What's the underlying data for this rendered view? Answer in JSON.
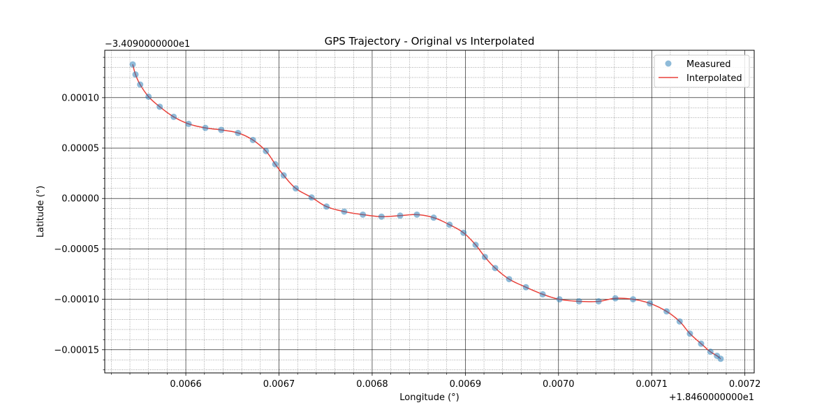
{
  "chart_data": {
    "type": "line",
    "title": "GPS Trajectory - Original vs Interpolated",
    "xlabel": "Longitude (°)",
    "ylabel": "Latitude (°)",
    "x_offset_label": "+1.8460000000e1",
    "y_offset_label": "−3.4090000000e1",
    "x_offset": 18.46,
    "y_offset": -34.09,
    "xlim": [
      0.006513,
      0.00721
    ],
    "ylim": [
      -0.000173,
      0.000147
    ],
    "xticks": [
      0.0066,
      0.0067,
      0.0068,
      0.0069,
      0.007,
      0.0071,
      0.0072
    ],
    "xtick_labels": [
      "0.0066",
      "0.0067",
      "0.0068",
      "0.0069",
      "0.0070",
      "0.0071",
      "0.0072"
    ],
    "yticks": [
      0.0001,
      5e-05,
      0.0,
      -5e-05,
      -0.0001,
      -0.00015
    ],
    "ytick_labels": [
      "0.00010",
      "0.00005",
      "0.00000",
      "−0.00005",
      "−0.00010",
      "−0.00015"
    ],
    "grid": true,
    "legend_position": "top-right",
    "series": [
      {
        "name": "Measured",
        "kind": "scatter",
        "color": "#1f77b4",
        "x": [
          0.006543,
          0.006546,
          0.006551,
          0.00656,
          0.006572,
          0.006587,
          0.006603,
          0.006621,
          0.006638,
          0.006656,
          0.006672,
          0.006686,
          0.006696,
          0.006705,
          0.006718,
          0.006735,
          0.006751,
          0.00677,
          0.00679,
          0.00681,
          0.00683,
          0.006848,
          0.006866,
          0.006883,
          0.006898,
          0.006911,
          0.006921,
          0.006932,
          0.006947,
          0.006965,
          0.006983,
          0.007001,
          0.007022,
          0.007043,
          0.007061,
          0.00708,
          0.007098,
          0.007116,
          0.00713,
          0.007141,
          0.007153,
          0.007163,
          0.00717,
          0.007174
        ],
        "y": [
          0.000133,
          0.000123,
          0.000113,
          0.000101,
          9.1e-05,
          8.1e-05,
          7.4e-05,
          7e-05,
          6.8e-05,
          6.5e-05,
          5.8e-05,
          4.7e-05,
          3.4e-05,
          2.3e-05,
          1e-05,
          1e-06,
          -8e-06,
          -1.3e-05,
          -1.6e-05,
          -1.8e-05,
          -1.7e-05,
          -1.6e-05,
          -1.9e-05,
          -2.6e-05,
          -3.4e-05,
          -4.6e-05,
          -5.8e-05,
          -6.9e-05,
          -8e-05,
          -8.8e-05,
          -9.5e-05,
          -0.0001,
          -0.000102,
          -0.000102,
          -9.9e-05,
          -0.0001,
          -0.000104,
          -0.000112,
          -0.000122,
          -0.000134,
          -0.000144,
          -0.000152,
          -0.000156,
          -0.000159
        ]
      },
      {
        "name": "Interpolated",
        "kind": "line",
        "color": "#e8413a"
      }
    ]
  }
}
